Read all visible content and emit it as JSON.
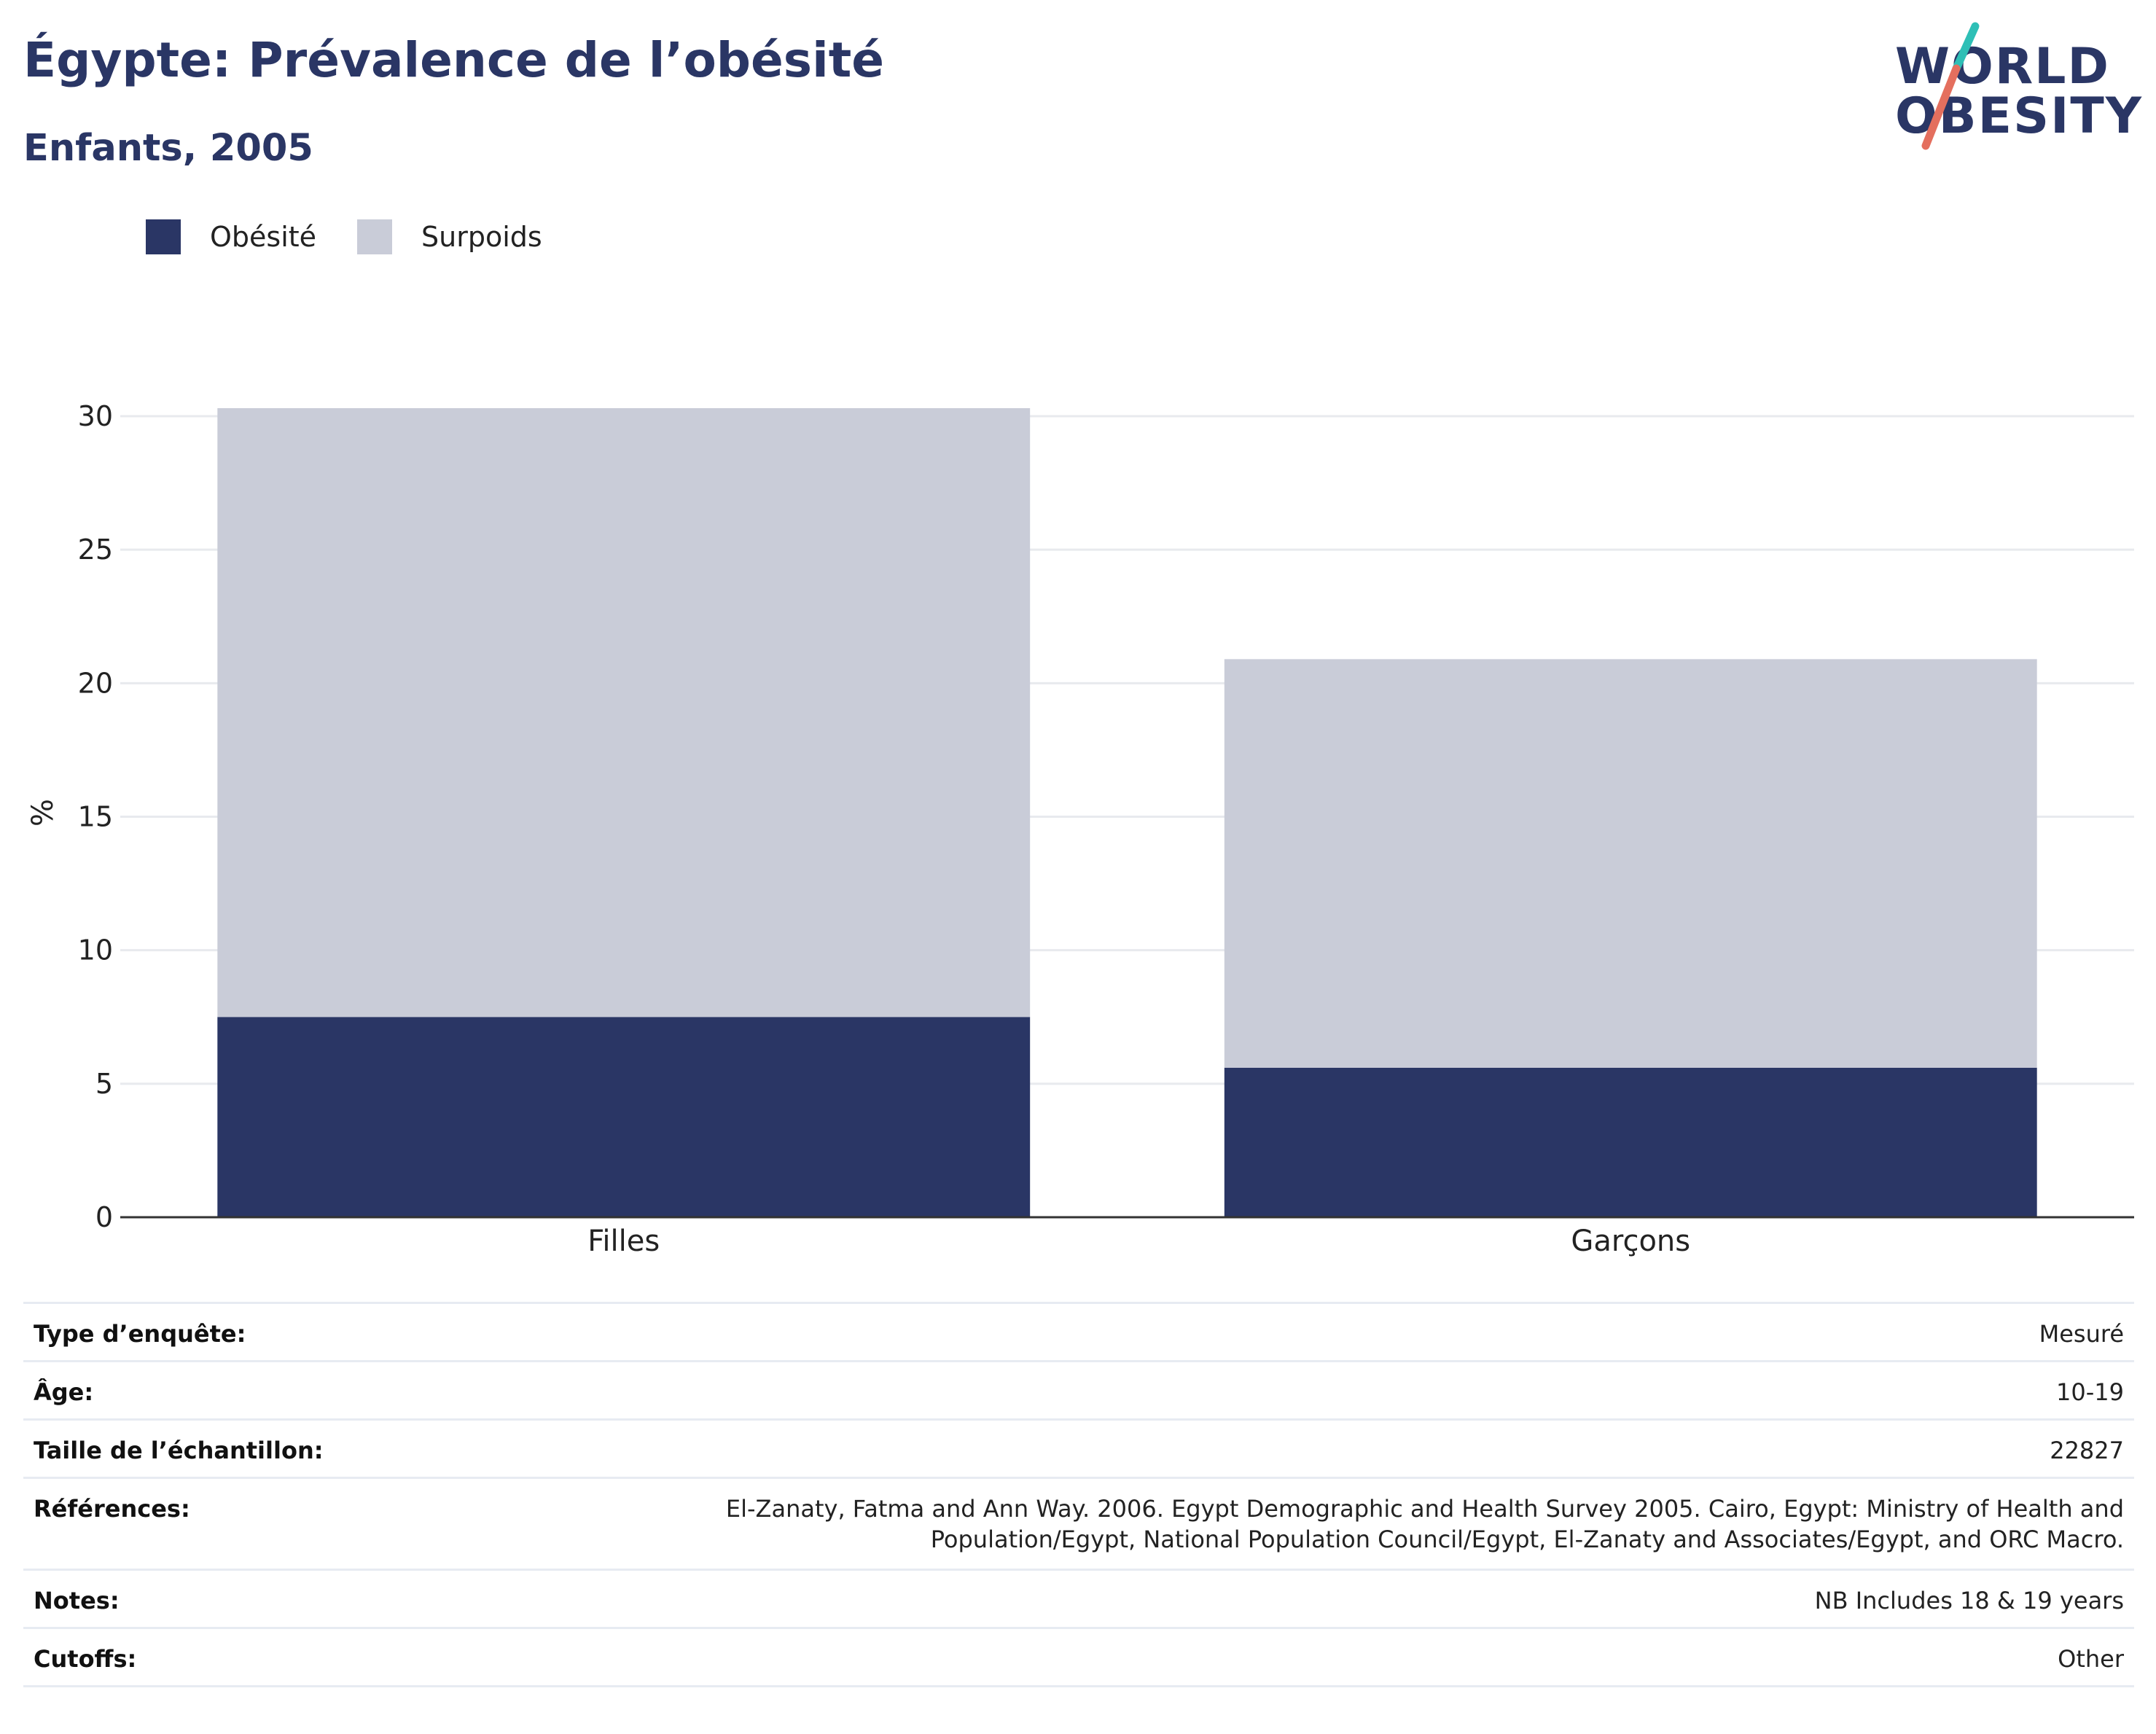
{
  "header": {
    "title": "Égypte: Prévalence de l’obésité",
    "subtitle": "Enfants, 2005"
  },
  "logo": {
    "line1": "WORLD",
    "line2": "OBESITY",
    "accent_colors": [
      "#2ebfb6",
      "#e46f5e"
    ]
  },
  "legend": {
    "items": [
      {
        "label": "Obésité",
        "color": "#2a3665"
      },
      {
        "label": "Surpoids",
        "color": "#c9ccd8"
      }
    ]
  },
  "chart_data": {
    "type": "bar",
    "stacked": true,
    "categories": [
      "Filles",
      "Garçons"
    ],
    "series": [
      {
        "name": "Obésité",
        "values": [
          7.5,
          5.6
        ],
        "color": "#2a3665"
      },
      {
        "name": "Surpoids",
        "values": [
          22.8,
          15.3
        ],
        "color": "#c9ccd8"
      }
    ],
    "ylabel": "%",
    "xlabel": "",
    "ylim": [
      0,
      30.3
    ],
    "yticks": [
      0,
      5,
      10,
      15,
      20,
      25,
      30
    ],
    "grid": true,
    "legend_position": "top-left"
  },
  "info": {
    "rows": [
      {
        "label": "Type d’enquête:",
        "value": "Mesuré"
      },
      {
        "label": "Âge:",
        "value": "10-19"
      },
      {
        "label": "Taille de l’échantillon:",
        "value": "22827"
      },
      {
        "label": "Références:",
        "value_line1": "El-Zanaty, Fatma and Ann Way. 2006. Egypt Demographic and Health Survey 2005. Cairo, Egypt: Ministry of Health and",
        "value_line2": "Population/Egypt, National Population Council/Egypt, El-Zanaty and Associates/Egypt, and ORC Macro."
      },
      {
        "label": "Notes:",
        "value": "NB Includes 18 & 19 years"
      },
      {
        "label": "Cutoffs:",
        "value": "Other"
      }
    ]
  }
}
